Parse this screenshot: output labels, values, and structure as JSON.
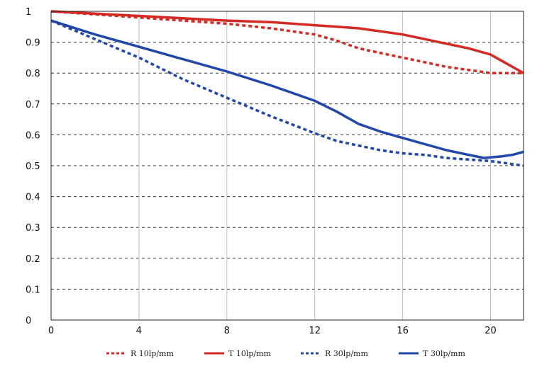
{
  "chart_data": {
    "type": "line",
    "title": "",
    "xlabel": "",
    "ylabel": "",
    "xlim": [
      0,
      21.5
    ],
    "ylim": [
      0,
      1
    ],
    "x_ticks": [
      0,
      4,
      8,
      12,
      16,
      20
    ],
    "x_tick_labels": [
      "0",
      "4",
      "8",
      "12",
      "16",
      "20"
    ],
    "y_ticks": [
      0,
      0.1,
      0.2,
      0.3,
      0.4,
      0.5,
      0.6,
      0.7,
      0.8,
      0.9,
      1
    ],
    "y_tick_labels": [
      "0",
      "0.1",
      "0.2",
      "0.3",
      "0.4",
      "0.5",
      "0.6",
      "0.7",
      "0.8",
      "0.9",
      "1"
    ],
    "grid": {
      "horizontal": "dashed",
      "vertical": "solid"
    },
    "legend_position": "bottom",
    "series": [
      {
        "name": "R 10lp/mm",
        "color": "#d42a24",
        "style": "dotted",
        "points": [
          [
            0,
            1.0
          ],
          [
            2,
            0.99
          ],
          [
            4,
            0.98
          ],
          [
            6,
            0.97
          ],
          [
            8,
            0.96
          ],
          [
            10,
            0.945
          ],
          [
            12,
            0.925
          ],
          [
            13,
            0.905
          ],
          [
            14,
            0.88
          ],
          [
            15,
            0.865
          ],
          [
            16,
            0.85
          ],
          [
            17,
            0.835
          ],
          [
            18,
            0.82
          ],
          [
            19,
            0.81
          ],
          [
            20,
            0.8
          ],
          [
            21.5,
            0.8
          ]
        ]
      },
      {
        "name": "T 10lp/mm",
        "color": "#d42a24",
        "style": "solid",
        "points": [
          [
            0,
            1.0
          ],
          [
            4,
            0.985
          ],
          [
            8,
            0.97
          ],
          [
            10,
            0.965
          ],
          [
            12,
            0.955
          ],
          [
            13,
            0.95
          ],
          [
            14,
            0.945
          ],
          [
            15,
            0.935
          ],
          [
            16,
            0.925
          ],
          [
            17,
            0.91
          ],
          [
            18,
            0.895
          ],
          [
            19,
            0.88
          ],
          [
            20,
            0.86
          ],
          [
            20.5,
            0.84
          ],
          [
            21,
            0.82
          ],
          [
            21.5,
            0.8
          ]
        ]
      },
      {
        "name": "R 30lp/mm",
        "color": "#2147a8",
        "style": "dotted",
        "points": [
          [
            0,
            0.97
          ],
          [
            2,
            0.91
          ],
          [
            4,
            0.85
          ],
          [
            6,
            0.78
          ],
          [
            8,
            0.72
          ],
          [
            10,
            0.66
          ],
          [
            12,
            0.605
          ],
          [
            13,
            0.58
          ],
          [
            14,
            0.565
          ],
          [
            15,
            0.55
          ],
          [
            16,
            0.54
          ],
          [
            17,
            0.535
          ],
          [
            18,
            0.525
          ],
          [
            19,
            0.52
          ],
          [
            20,
            0.515
          ],
          [
            21,
            0.505
          ],
          [
            21.5,
            0.5
          ]
        ]
      },
      {
        "name": "T 30lp/mm",
        "color": "#2147a8",
        "style": "solid",
        "points": [
          [
            0,
            0.97
          ],
          [
            2,
            0.925
          ],
          [
            4,
            0.885
          ],
          [
            6,
            0.845
          ],
          [
            8,
            0.805
          ],
          [
            10,
            0.76
          ],
          [
            12,
            0.71
          ],
          [
            13,
            0.675
          ],
          [
            14,
            0.635
          ],
          [
            15,
            0.61
          ],
          [
            16,
            0.59
          ],
          [
            17,
            0.57
          ],
          [
            18,
            0.55
          ],
          [
            19,
            0.535
          ],
          [
            19.7,
            0.525
          ],
          [
            20.5,
            0.53
          ],
          [
            21,
            0.535
          ],
          [
            21.5,
            0.545
          ]
        ]
      }
    ]
  }
}
